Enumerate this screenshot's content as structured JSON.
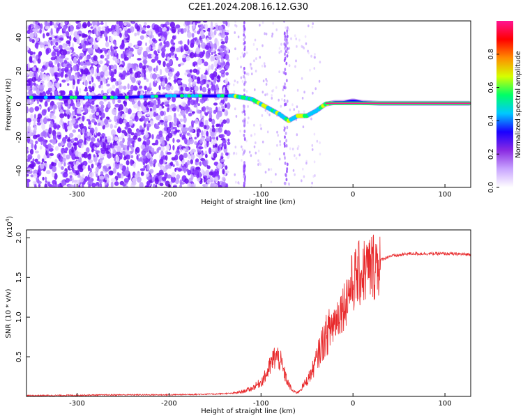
{
  "title": "C2E1.2024.208.16.12.G30",
  "chart_data": [
    {
      "type": "heatmap",
      "xlabel": "Height of straight line (km)",
      "ylabel": "Frequency (Hz)",
      "xlim": [
        -355,
        128
      ],
      "ylim": [
        -50,
        50
      ],
      "xticks": [
        "-300",
        "-200",
        "-100",
        "0",
        "100"
      ],
      "yticks": [
        "-40",
        "-20",
        "0",
        "20",
        "40"
      ],
      "colorbar": {
        "label": "Normalized spectral amplitude",
        "range": [
          0,
          1
        ],
        "ticks": [
          "0.0",
          "0.2",
          "0.4",
          "0.6",
          "0.8"
        ],
        "colors": [
          "#ffffff",
          "#c9a5ff",
          "#8a2be2",
          "#1a00ff",
          "#00c8ff",
          "#00ff66",
          "#d6ff00",
          "#ff8c00",
          "#ff0000",
          "#ff1493"
        ]
      },
      "signal_trace": {
        "x": [
          -355,
          -300,
          -250,
          -200,
          -150,
          -130,
          -110,
          -100,
          -90,
          -80,
          -70,
          -60,
          -50,
          -40,
          -30,
          -20,
          -10,
          0,
          10,
          30,
          60,
          100,
          128
        ],
        "y": [
          4,
          4,
          4,
          5,
          5,
          5,
          3,
          0,
          -3,
          -6,
          -10,
          -7,
          -7,
          -4,
          0,
          1,
          1,
          2,
          1,
          0.5,
          0.5,
          0.5,
          0.5
        ]
      }
    },
    {
      "type": "line",
      "xlabel": "Height of straight line (km)",
      "ylabel": "SNR (10 * v/v)",
      "multiplier": "(x10",
      "multiplier_exp": "4",
      "multiplier_close": ")",
      "xlim": [
        -355,
        128
      ],
      "ylim": [
        0,
        2.1
      ],
      "xticks": [
        "-300",
        "-200",
        "-100",
        "0",
        "100"
      ],
      "yticks": [
        "0.5",
        "1.0",
        "1.5",
        "2.0"
      ],
      "series": [
        {
          "color": "#e8282a",
          "x": [
            -355,
            -300,
            -250,
            -200,
            -150,
            -130,
            -120,
            -110,
            -100,
            -95,
            -90,
            -85,
            -80,
            -75,
            -70,
            -65,
            -60,
            -55,
            -50,
            -45,
            -40,
            -35,
            -30,
            -25,
            -20,
            -15,
            -10,
            -5,
            0,
            5,
            10,
            15,
            20,
            25,
            30,
            40,
            50,
            60,
            80,
            100,
            128
          ],
          "y": [
            0.01,
            0.015,
            0.02,
            0.02,
            0.03,
            0.04,
            0.06,
            0.1,
            0.18,
            0.26,
            0.38,
            0.5,
            0.48,
            0.3,
            0.15,
            0.06,
            0.05,
            0.12,
            0.2,
            0.3,
            0.45,
            0.62,
            0.75,
            0.85,
            0.95,
            1.05,
            1.15,
            1.3,
            1.45,
            1.52,
            1.57,
            1.6,
            1.63,
            1.68,
            1.72,
            1.77,
            1.78,
            1.8,
            1.8,
            1.8,
            1.79
          ]
        }
      ]
    }
  ]
}
